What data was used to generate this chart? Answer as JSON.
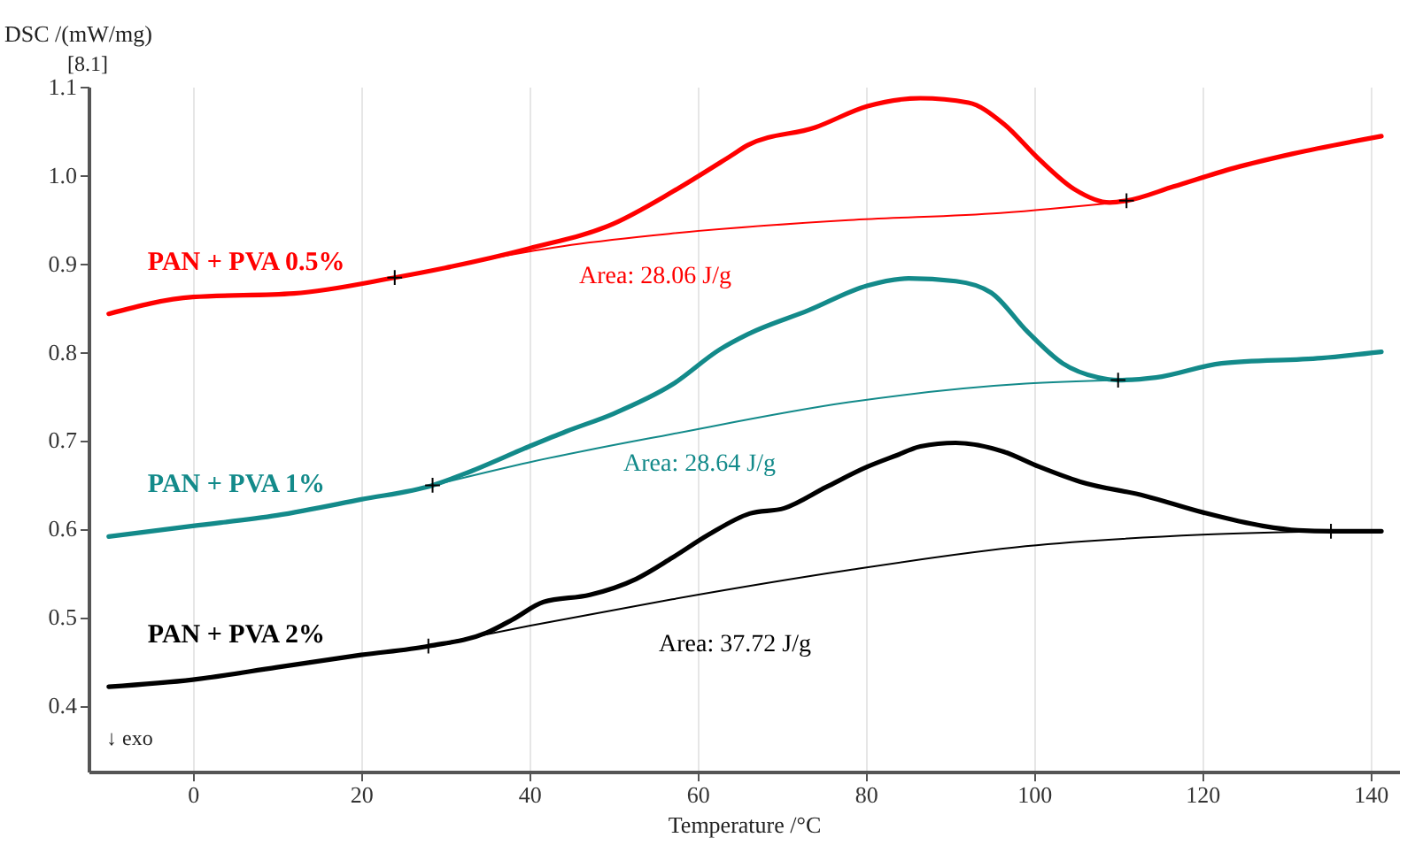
{
  "chart_data": {
    "type": "line",
    "xlabel": "Temperature /°C",
    "ylabel": "DSC /(mW/mg)",
    "xlim": [
      -12.4,
      143.4
    ],
    "ylim": [
      0.325,
      1.1
    ],
    "xticks": [
      0,
      20,
      40,
      60,
      80,
      100,
      120,
      140
    ],
    "yticks": [
      0.4,
      0.5,
      0.6,
      0.7,
      0.8,
      0.9,
      {
        "value": 1,
        "label": "1.0"
      },
      1.1
    ],
    "grid": "x",
    "line_style": "solid",
    "series": [
      {
        "name": "PAN + PVA 0.5%",
        "color": "#ff0000",
        "x": [
          -10,
          0,
          12,
          24,
          30,
          40,
          50,
          57,
          64,
          66,
          74,
          80.2,
          86.5,
          92.2,
          96.4,
          100.6,
          104.8,
          109,
          111,
          116.6,
          123.8,
          130.7,
          141.3
        ],
        "values": [
          0.843,
          0.862,
          0.866,
          0.884,
          0.895,
          0.917,
          0.945,
          0.981,
          1.022,
          1.034,
          1.054,
          1.078,
          1.087,
          1.082,
          1.058,
          1.018,
          0.984,
          0.969,
          0.971,
          0.987,
          1.008,
          1.024,
          1.044
        ]
      },
      {
        "color": "#ff0000",
        "x": [
          24,
          35,
          45,
          57,
          78,
          96,
          111
        ],
        "values": [
          0.884,
          0.905,
          0.921,
          0.934,
          0.949,
          0.957,
          0.97
        ]
      },
      {
        "name": "PAN + PVA 1%",
        "color": "#138a8a",
        "x": [
          -10,
          0,
          10,
          20,
          28.5,
          32.3,
          40,
          44.4,
          50,
          57,
          62.7,
          66,
          73.2,
          80.2,
          85.1,
          90.7,
          94.9,
          99.2,
          103.4,
          107.6,
          110,
          114.5,
          122.3,
          134.2,
          141.3
        ],
        "values": [
          0.591,
          0.603,
          0.615,
          0.633,
          0.649,
          0.662,
          0.693,
          0.71,
          0.73,
          0.763,
          0.803,
          0.82,
          0.847,
          0.875,
          0.883,
          0.88,
          0.867,
          0.823,
          0.787,
          0.771,
          0.768,
          0.771,
          0.787,
          0.793,
          0.8
        ]
      },
      {
        "color": "#138a8a",
        "x": [
          28.5,
          40,
          57,
          78,
          99,
          110
        ],
        "values": [
          0.649,
          0.675,
          0.707,
          0.743,
          0.764,
          0.768
        ]
      },
      {
        "name": "PAN + PVA 2%",
        "color": "#000000",
        "x": [
          -10,
          0,
          10,
          20,
          28,
          34.9,
          38,
          41.7,
          47.2,
          52.7,
          57,
          61.3,
          66.2,
          70.3,
          75.3,
          80.2,
          83.7,
          86.5,
          90.7,
          96.4,
          100.6,
          105.5,
          113.2,
          120.2,
          127.2,
          131.4,
          135.3,
          141.3
        ],
        "values": [
          0.421,
          0.429,
          0.443,
          0.457,
          0.467,
          0.482,
          0.497,
          0.517,
          0.525,
          0.543,
          0.567,
          0.593,
          0.617,
          0.623,
          0.647,
          0.67,
          0.683,
          0.693,
          0.697,
          0.687,
          0.67,
          0.653,
          0.637,
          0.618,
          0.603,
          0.598,
          0.597,
          0.597
        ]
      },
      {
        "color": "#000000",
        "x": [
          28,
          40,
          57,
          78,
          99,
          120,
          135.3
        ],
        "values": [
          0.467,
          0.49,
          0.52,
          0.553,
          0.58,
          0.593,
          0.597
        ]
      },
      {
        "type": "scatter",
        "marker": "cross",
        "color": "#000000",
        "x": [
          24,
          111,
          28.5,
          110,
          28,
          135.3
        ],
        "values": [
          0.884,
          0.971,
          0.649,
          0.768,
          0.467,
          0.597
        ]
      }
    ],
    "annotations": [
      "[8.1]",
      "↓ exo",
      "Area: 28.06 J/g",
      "Area: 28.64 J/g",
      "Area: 37.72 J/g"
    ]
  }
}
